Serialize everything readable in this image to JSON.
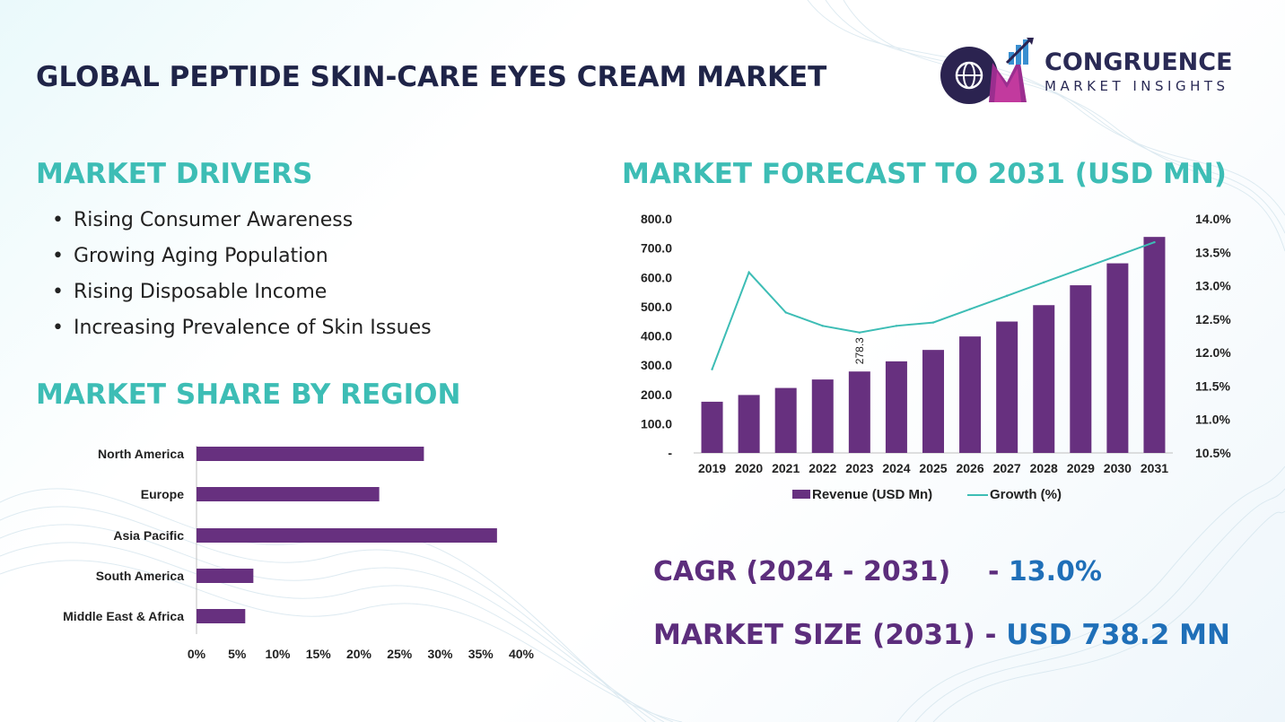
{
  "title": "GLOBAL PEPTIDE SKIN-CARE EYES CREAM MARKET",
  "logo": {
    "letters": "CM",
    "name": "CONGRUENCE",
    "sub": "MARKET INSIGHTS"
  },
  "drivers": {
    "heading": "MARKET DRIVERS",
    "items": [
      "Rising Consumer Awareness",
      "Growing Aging Population",
      "Rising Disposable Income",
      "Increasing Prevalence of Skin Issues"
    ]
  },
  "share_heading": "MARKET SHARE BY REGION",
  "forecast_heading": "MARKET FORECAST TO 2031 (USD MN)",
  "cagr": {
    "label": "CAGR (2024 - 2031)",
    "sep": "- ",
    "value": "13.0%"
  },
  "market_size": {
    "label": "MARKET SIZE (2031)",
    "sep": " - ",
    "value": "USD  738.2 MN"
  },
  "colors": {
    "bar": "#67307f",
    "line": "#3dbdb5",
    "heading_teal": "#3dbdb5",
    "title_navy": "#1f2448",
    "accent_blue": "#1f6fb8"
  },
  "chart_data": [
    {
      "type": "bar",
      "orientation": "horizontal",
      "categories": [
        "North America",
        "Europe",
        "Asia Pacific",
        "South America",
        "Middle East & Africa"
      ],
      "values": [
        28,
        22.5,
        37,
        7,
        6
      ],
      "xlim": [
        0,
        40
      ],
      "x_ticks": [
        "0%",
        "5%",
        "10%",
        "15%",
        "20%",
        "25%",
        "30%",
        "35%",
        "40%"
      ],
      "grid": false
    },
    {
      "type": "bar",
      "categories": [
        "2019",
        "2020",
        "2021",
        "2022",
        "2023",
        "2024",
        "2025",
        "2026",
        "2027",
        "2028",
        "2029",
        "2030",
        "2031"
      ],
      "series": [
        {
          "name": "Revenue (USD Mn)",
          "type": "bar",
          "axis": "left",
          "values": [
            175,
            198,
            222,
            251,
            278.3,
            313,
            352,
            398,
            449,
            505,
            573,
            648,
            738.2
          ]
        },
        {
          "name": "Growth (%)",
          "type": "line",
          "axis": "right",
          "values": [
            11.75,
            13.2,
            12.6,
            12.4,
            12.3,
            12.4,
            12.45,
            12.65,
            12.85,
            13.05,
            13.25,
            13.45,
            13.65
          ]
        }
      ],
      "data_labels": [
        {
          "category": "2023",
          "text": "278.3"
        }
      ],
      "y_left": {
        "lim": [
          0,
          800
        ],
        "ticks": [
          "-",
          "100.0",
          "200.0",
          "300.0",
          "400.0",
          "500.0",
          "600.0",
          "700.0",
          "800.0"
        ]
      },
      "y_right": {
        "lim": [
          10.5,
          14.0
        ],
        "ticks": [
          "10.5%",
          "11.0%",
          "11.5%",
          "12.0%",
          "12.5%",
          "13.0%",
          "13.5%",
          "14.0%"
        ]
      },
      "legend": "bottom",
      "grid": false
    }
  ]
}
